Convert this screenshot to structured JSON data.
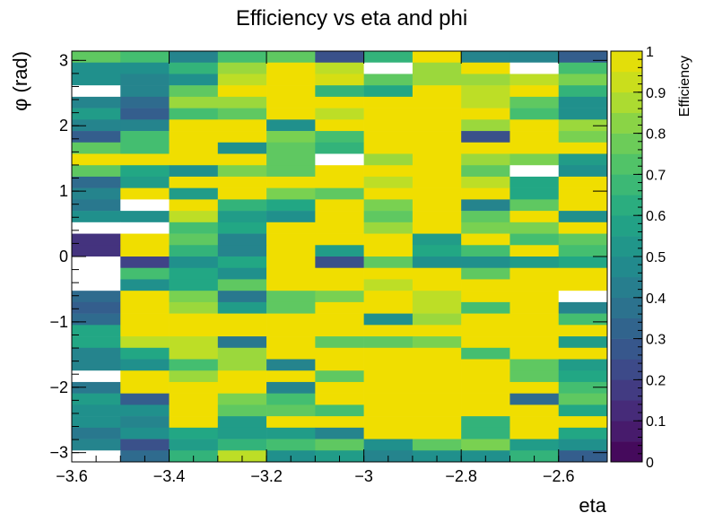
{
  "chart_data": {
    "type": "heatmap",
    "title": "Efficiency vs eta and phi",
    "xlabel": "eta",
    "ylabel": "φ (rad)",
    "zlabel": "Efficiency",
    "xlim": [
      -3.6,
      -2.5
    ],
    "ylim": [
      -3.1416,
      3.1416
    ],
    "zlim": [
      0,
      1
    ],
    "x_ticks": [
      -3.6,
      -3.4,
      -3.2,
      -3.0,
      -2.8,
      -2.6
    ],
    "x_tick_labels": [
      "−3.6",
      "−3.4",
      "−3.2",
      "−3",
      "−2.8",
      "−2.6"
    ],
    "y_ticks": [
      -3,
      -2,
      -1,
      0,
      1,
      2,
      3
    ],
    "y_tick_labels": [
      "−3",
      "−2",
      "−1",
      "0",
      "1",
      "2",
      "3"
    ],
    "z_ticks": [
      0,
      0.1,
      0.2,
      0.3,
      0.4,
      0.5,
      0.6,
      0.7,
      0.8,
      0.9,
      1
    ],
    "z_tick_labels": [
      "0",
      "0.1",
      "0.2",
      "0.3",
      "0.4",
      "0.5",
      "0.6",
      "0.7",
      "0.8",
      "0.9",
      "1"
    ],
    "x_bin_edges": [
      -3.6,
      -3.5,
      -3.4,
      -3.3,
      -3.2,
      -3.1,
      -3.0,
      -2.9,
      -2.8,
      -2.7,
      -2.6,
      -2.5
    ],
    "n_phi_bins": 36,
    "colormap": "viridis",
    "empty_bin_color": "#ffffff",
    "rows_top_to_bottom": [
      [
        0.75,
        0.7,
        0.45,
        0.7,
        0.75,
        0.25,
        0.65,
        1.0,
        0.45,
        0.45,
        0.3
      ],
      [
        0.5,
        0.5,
        0.65,
        0.85,
        1.0,
        0.9,
        null,
        0.85,
        1.0,
        null,
        0.7
      ],
      [
        0.5,
        0.45,
        0.5,
        0.9,
        1.0,
        0.95,
        0.75,
        0.85,
        0.85,
        0.9,
        0.8
      ],
      [
        null,
        0.45,
        0.75,
        1.0,
        1.0,
        0.65,
        0.6,
        1.0,
        0.9,
        1.0,
        0.65
      ],
      [
        0.45,
        0.35,
        0.85,
        0.85,
        1.0,
        1.0,
        1.0,
        1.0,
        0.9,
        0.75,
        0.5
      ],
      [
        0.55,
        0.3,
        0.7,
        0.75,
        1.0,
        0.9,
        1.0,
        1.0,
        1.0,
        0.7,
        0.5
      ],
      [
        0.45,
        0.45,
        1.0,
        1.0,
        0.5,
        1.0,
        1.0,
        1.0,
        0.85,
        1.0,
        0.85
      ],
      [
        0.3,
        0.7,
        1.0,
        1.0,
        0.8,
        0.7,
        1.0,
        1.0,
        0.25,
        1.0,
        0.8
      ],
      [
        0.75,
        0.7,
        1.0,
        0.5,
        0.75,
        0.65,
        1.0,
        1.0,
        1.0,
        1.0,
        1.0
      ],
      [
        1.0,
        1.0,
        1.0,
        1.0,
        0.75,
        null,
        0.85,
        1.0,
        0.85,
        0.8,
        0.55
      ],
      [
        0.75,
        0.6,
        0.5,
        0.8,
        0.75,
        1.0,
        1.0,
        1.0,
        0.75,
        null,
        0.5
      ],
      [
        0.35,
        0.55,
        1.0,
        1.0,
        1.0,
        1.0,
        0.9,
        1.0,
        0.9,
        0.6,
        1.0
      ],
      [
        0.45,
        1.0,
        0.55,
        1.0,
        0.8,
        0.75,
        1.0,
        1.0,
        1.0,
        0.6,
        1.0
      ],
      [
        0.4,
        null,
        1.0,
        0.65,
        0.6,
        1.0,
        0.8,
        1.0,
        0.45,
        0.75,
        1.0
      ],
      [
        0.5,
        0.5,
        0.9,
        0.55,
        0.5,
        1.0,
        0.75,
        1.0,
        0.75,
        1.0,
        0.5
      ],
      [
        null,
        null,
        0.7,
        0.6,
        1.0,
        1.0,
        0.85,
        1.0,
        0.8,
        0.8,
        1.0
      ],
      [
        0.15,
        1.0,
        0.75,
        0.45,
        1.0,
        1.0,
        1.0,
        0.55,
        1.0,
        0.7,
        0.75
      ],
      [
        0.15,
        1.0,
        0.65,
        0.45,
        1.0,
        0.55,
        1.0,
        0.6,
        0.7,
        1.0,
        0.7
      ],
      [
        null,
        0.2,
        0.5,
        0.6,
        1.0,
        0.25,
        0.75,
        0.5,
        0.5,
        0.55,
        0.6
      ],
      [
        null,
        0.7,
        0.6,
        0.5,
        1.0,
        1.0,
        1.0,
        1.0,
        0.75,
        1.0,
        1.0
      ],
      [
        null,
        0.5,
        0.6,
        0.75,
        1.0,
        1.0,
        0.9,
        1.0,
        1.0,
        1.0,
        1.0
      ],
      [
        0.35,
        1.0,
        0.8,
        0.4,
        0.75,
        0.8,
        1.0,
        0.9,
        1.0,
        1.0,
        null
      ],
      [
        0.3,
        1.0,
        0.85,
        0.55,
        0.75,
        1.0,
        1.0,
        0.9,
        0.7,
        1.0,
        0.45
      ],
      [
        0.35,
        1.0,
        1.0,
        1.0,
        1.0,
        1.0,
        0.5,
        0.85,
        1.0,
        1.0,
        0.7
      ],
      [
        0.6,
        1.0,
        1.0,
        1.0,
        1.0,
        1.0,
        1.0,
        1.0,
        1.0,
        1.0,
        1.0
      ],
      [
        0.6,
        0.9,
        0.9,
        0.4,
        1.0,
        0.75,
        0.75,
        0.8,
        1.0,
        1.0,
        0.55
      ],
      [
        0.45,
        0.6,
        0.9,
        0.85,
        1.0,
        1.0,
        1.0,
        1.0,
        0.7,
        1.0,
        1.0
      ],
      [
        0.45,
        0.5,
        0.7,
        0.85,
        0.45,
        1.0,
        1.0,
        1.0,
        1.0,
        0.75,
        0.55
      ],
      [
        null,
        1.0,
        0.85,
        1.0,
        1.0,
        0.75,
        1.0,
        1.0,
        1.0,
        0.75,
        0.6
      ],
      [
        0.4,
        1.0,
        1.0,
        1.0,
        0.45,
        1.0,
        1.0,
        1.0,
        1.0,
        1.0,
        0.7
      ],
      [
        0.55,
        0.3,
        1.0,
        0.8,
        0.7,
        1.0,
        1.0,
        1.0,
        1.0,
        0.35,
        0.75
      ],
      [
        0.5,
        0.5,
        1.0,
        0.75,
        0.75,
        0.7,
        1.0,
        1.0,
        1.0,
        1.0,
        0.6
      ],
      [
        0.5,
        0.45,
        1.0,
        0.55,
        1.0,
        1.0,
        1.0,
        1.0,
        0.65,
        1.0,
        1.0
      ],
      [
        0.4,
        0.5,
        0.6,
        0.55,
        0.55,
        0.45,
        1.0,
        1.0,
        0.65,
        1.0,
        0.6
      ],
      [
        0.45,
        0.25,
        0.55,
        0.65,
        0.7,
        0.75,
        0.5,
        0.75,
        0.8,
        0.55,
        0.5
      ],
      [
        null,
        0.35,
        0.65,
        0.9,
        0.5,
        0.55,
        0.45,
        0.5,
        0.5,
        0.65,
        0.3
      ]
    ]
  }
}
